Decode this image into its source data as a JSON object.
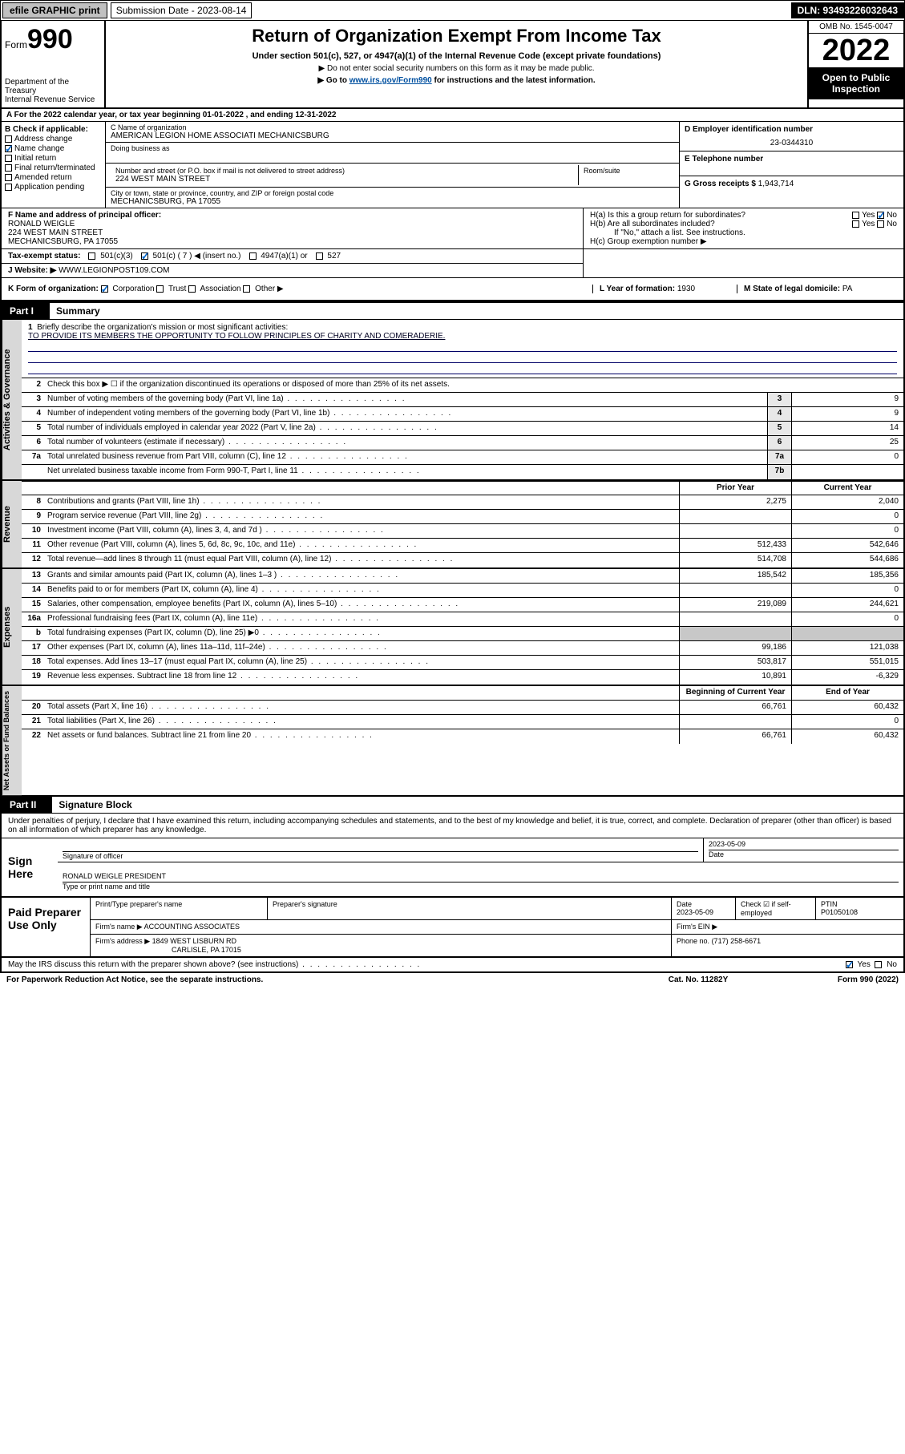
{
  "topbar": {
    "efile": "efile GRAPHIC print",
    "subdate_label": "Submission Date - 2023-08-14",
    "dln": "DLN: 93493226032643"
  },
  "header": {
    "form_prefix": "Form",
    "form_no": "990",
    "dept": "Department of the Treasury\nInternal Revenue Service",
    "title": "Return of Organization Exempt From Income Tax",
    "sub": "Under section 501(c), 527, or 4947(a)(1) of the Internal Revenue Code (except private foundations)",
    "note1": "▶ Do not enter social security numbers on this form as it may be made public.",
    "note2_pre": "▶ Go to ",
    "note2_link": "www.irs.gov/Form990",
    "note2_post": " for instructions and the latest information.",
    "omb": "OMB No. 1545-0047",
    "year": "2022",
    "inspect": "Open to Public Inspection"
  },
  "line_a": "A For the 2022 calendar year, or tax year beginning 01-01-2022    , and ending 12-31-2022",
  "block_b": {
    "label": "B Check if applicable:",
    "opts": [
      "Address change",
      "Name change",
      "Initial return",
      "Final return/terminated",
      "Amended return",
      "Application pending"
    ],
    "checked_idx": 1
  },
  "block_c": {
    "name_lbl": "C Name of organization",
    "name": "AMERICAN LEGION HOME ASSOCIATI MECHANICSBURG",
    "dba_lbl": "Doing business as",
    "addr_lbl": "Number and street (or P.O. box if mail is not delivered to street address)",
    "room_lbl": "Room/suite",
    "addr": "224 WEST MAIN STREET",
    "city_lbl": "City or town, state or province, country, and ZIP or foreign postal code",
    "city": "MECHANICSBURG, PA  17055"
  },
  "block_d": {
    "lbl": "D Employer identification number",
    "val": "23-0344310"
  },
  "block_e": {
    "lbl": "E Telephone number",
    "val": ""
  },
  "block_g": {
    "lbl": "G Gross receipts $",
    "val": "1,943,714"
  },
  "officer": {
    "lbl": "F Name and address of principal officer:",
    "name": "RONALD WEIGLE",
    "addr1": "224 WEST MAIN STREET",
    "addr2": "MECHANICSBURG, PA  17055"
  },
  "h": {
    "a_lbl": "H(a)  Is this a group return for subordinates?",
    "a_yes": "Yes",
    "a_no": "No",
    "b_lbl": "H(b)  Are all subordinates included?",
    "b_note": "If \"No,\" attach a list. See instructions.",
    "c_lbl": "H(c)  Group exemption number ▶"
  },
  "status": {
    "lbl": "Tax-exempt status:",
    "o1": "501(c)(3)",
    "o2": "501(c) ( 7 ) ◀ (insert no.)",
    "o3": "4947(a)(1) or",
    "o4": "527"
  },
  "website": {
    "lbl": "J   Website: ▶",
    "val": "WWW.LEGIONPOST109.COM"
  },
  "korg": {
    "lbl": "K Form of organization:",
    "o1": "Corporation",
    "o2": "Trust",
    "o3": "Association",
    "o4": "Other ▶",
    "l_lbl": "L Year of formation:",
    "l_val": "1930",
    "m_lbl": "M State of legal domicile:",
    "m_val": "PA"
  },
  "part1": {
    "hdr": "Part I",
    "title": "Summary",
    "q1_lbl": "Briefly describe the organization's mission or most significant activities:",
    "q1_val": "TO PROVIDE ITS MEMBERS THE OPPORTUNITY TO FOLLOW PRINCIPLES OF CHARITY AND COMERADERIE.",
    "q2": "Check this box ▶ ☐  if the organization discontinued its operations or disposed of more than 25% of its net assets.",
    "rows_gov": [
      {
        "n": "3",
        "d": "Number of voting members of the governing body (Part VI, line 1a)",
        "box": "3",
        "v": "9"
      },
      {
        "n": "4",
        "d": "Number of independent voting members of the governing body (Part VI, line 1b)",
        "box": "4",
        "v": "9"
      },
      {
        "n": "5",
        "d": "Total number of individuals employed in calendar year 2022 (Part V, line 2a)",
        "box": "5",
        "v": "14"
      },
      {
        "n": "6",
        "d": "Total number of volunteers (estimate if necessary)",
        "box": "6",
        "v": "25"
      },
      {
        "n": "7a",
        "d": "Total unrelated business revenue from Part VIII, column (C), line 12",
        "box": "7a",
        "v": "0"
      },
      {
        "n": "",
        "d": "Net unrelated business taxable income from Form 990-T, Part I, line 11",
        "box": "7b",
        "v": ""
      }
    ],
    "col_prior": "Prior Year",
    "col_curr": "Current Year",
    "rows_rev": [
      {
        "n": "8",
        "d": "Contributions and grants (Part VIII, line 1h)",
        "p": "2,275",
        "c": "2,040"
      },
      {
        "n": "9",
        "d": "Program service revenue (Part VIII, line 2g)",
        "p": "",
        "c": "0"
      },
      {
        "n": "10",
        "d": "Investment income (Part VIII, column (A), lines 3, 4, and 7d )",
        "p": "",
        "c": "0"
      },
      {
        "n": "11",
        "d": "Other revenue (Part VIII, column (A), lines 5, 6d, 8c, 9c, 10c, and 11e)",
        "p": "512,433",
        "c": "542,646"
      },
      {
        "n": "12",
        "d": "Total revenue—add lines 8 through 11 (must equal Part VIII, column (A), line 12)",
        "p": "514,708",
        "c": "544,686"
      }
    ],
    "rows_exp": [
      {
        "n": "13",
        "d": "Grants and similar amounts paid (Part IX, column (A), lines 1–3 )",
        "p": "185,542",
        "c": "185,356"
      },
      {
        "n": "14",
        "d": "Benefits paid to or for members (Part IX, column (A), line 4)",
        "p": "",
        "c": "0"
      },
      {
        "n": "15",
        "d": "Salaries, other compensation, employee benefits (Part IX, column (A), lines 5–10)",
        "p": "219,089",
        "c": "244,621"
      },
      {
        "n": "16a",
        "d": "Professional fundraising fees (Part IX, column (A), line 11e)",
        "p": "",
        "c": "0"
      },
      {
        "n": "b",
        "d": "Total fundraising expenses (Part IX, column (D), line 25) ▶0",
        "p": "GREY",
        "c": "GREY"
      },
      {
        "n": "17",
        "d": "Other expenses (Part IX, column (A), lines 11a–11d, 11f–24e)",
        "p": "99,186",
        "c": "121,038"
      },
      {
        "n": "18",
        "d": "Total expenses. Add lines 13–17 (must equal Part IX, column (A), line 25)",
        "p": "503,817",
        "c": "551,015"
      },
      {
        "n": "19",
        "d": "Revenue less expenses. Subtract line 18 from line 12",
        "p": "10,891",
        "c": "-6,329"
      }
    ],
    "col_beg": "Beginning of Current Year",
    "col_end": "End of Year",
    "rows_net": [
      {
        "n": "20",
        "d": "Total assets (Part X, line 16)",
        "p": "66,761",
        "c": "60,432"
      },
      {
        "n": "21",
        "d": "Total liabilities (Part X, line 26)",
        "p": "",
        "c": "0"
      },
      {
        "n": "22",
        "d": "Net assets or fund balances. Subtract line 21 from line 20",
        "p": "66,761",
        "c": "60,432"
      }
    ],
    "strip_gov": "Activities & Governance",
    "strip_rev": "Revenue",
    "strip_exp": "Expenses",
    "strip_net": "Net Assets or Fund Balances"
  },
  "part2": {
    "hdr": "Part II",
    "title": "Signature Block",
    "intro": "Under penalties of perjury, I declare that I have examined this return, including accompanying schedules and statements, and to the best of my knowledge and belief, it is true, correct, and complete. Declaration of preparer (other than officer) is based on all information of which preparer has any knowledge."
  },
  "sign": {
    "lbl": "Sign Here",
    "sig_lbl": "Signature of officer",
    "date_lbl": "Date",
    "date": "2023-05-09",
    "name": "RONALD WEIGLE  PRESIDENT",
    "name_lbl": "Type or print name and title"
  },
  "prep": {
    "lbl": "Paid Preparer Use Only",
    "r1": [
      "Print/Type preparer's name",
      "Preparer's signature",
      "Date",
      "",
      "PTIN"
    ],
    "r1v": [
      "",
      "",
      "2023-05-09",
      "Check ☑ if self-employed",
      "P01050108"
    ],
    "firm_lbl": "Firm's name   ▶",
    "firm": "ACCOUNTING ASSOCIATES",
    "ein_lbl": "Firm's EIN ▶",
    "addr_lbl": "Firm's address ▶",
    "addr": "1849 WEST LISBURN RD",
    "addr2": "CARLISLE, PA  17015",
    "phone_lbl": "Phone no.",
    "phone": "(717) 258-6671"
  },
  "footer": {
    "irs_q": "May the IRS discuss this return with the preparer shown above? (see instructions)",
    "yes": "Yes",
    "no": "No",
    "pra": "For Paperwork Reduction Act Notice, see the separate instructions.",
    "cat": "Cat. No. 11282Y",
    "form": "Form 990 (2022)"
  }
}
